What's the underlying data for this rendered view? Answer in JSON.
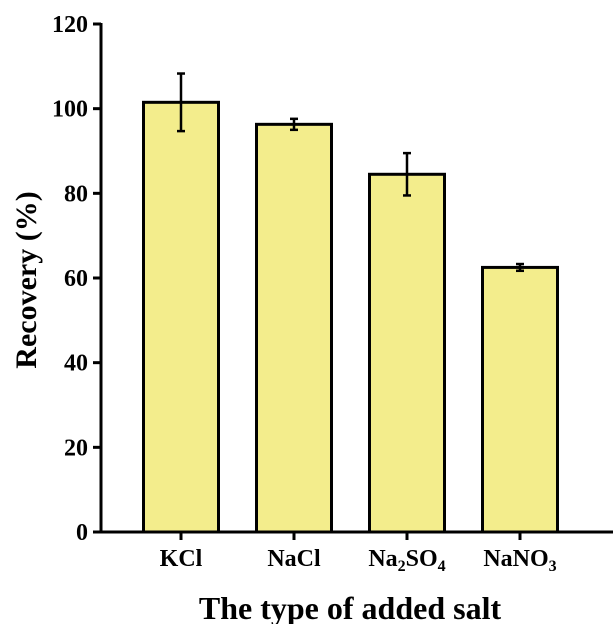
{
  "chart_data": {
    "type": "bar",
    "title": "",
    "xlabel": "The type of added salt",
    "ylabel": "Recovery (%)",
    "ylim": [
      0,
      120
    ],
    "yticks": [
      0,
      20,
      40,
      60,
      80,
      100,
      120
    ],
    "categories": [
      {
        "label": "KCl",
        "base": "KCl",
        "parts": [
          {
            "text": "KCl",
            "sub": false
          }
        ]
      },
      {
        "label": "NaCl",
        "base": "NaCl",
        "parts": [
          {
            "text": "NaCl",
            "sub": false
          }
        ]
      },
      {
        "label": "Na2SO4",
        "base": "Na",
        "parts": [
          {
            "text": "Na",
            "sub": false
          },
          {
            "text": "2",
            "sub": true
          },
          {
            "text": "SO",
            "sub": false
          },
          {
            "text": "4",
            "sub": true
          }
        ]
      },
      {
        "label": "NaNO3",
        "base": "NaNO",
        "parts": [
          {
            "text": "NaNO",
            "sub": false
          },
          {
            "text": "3",
            "sub": true
          }
        ]
      }
    ],
    "values": [
      101.5,
      96.3,
      84.5,
      62.5
    ],
    "errors": [
      6.8,
      1.3,
      5.0,
      0.8
    ],
    "bar_color": "#f3ed8c",
    "bar_edge_color": "#000000",
    "grid": false,
    "legend": "none"
  }
}
